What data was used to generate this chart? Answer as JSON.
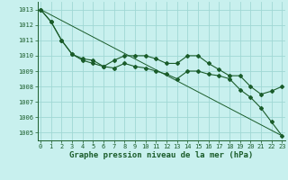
{
  "title": "Graphe pression niveau de la mer (hPa)",
  "bg_color": "#c8f0ee",
  "line_color": "#1a5c2a",
  "grid_color": "#a0d8d4",
  "ylim": [
    1004.5,
    1013.5
  ],
  "xlim": [
    -0.3,
    23.3
  ],
  "yticks": [
    1005,
    1006,
    1007,
    1008,
    1009,
    1010,
    1011,
    1012,
    1013
  ],
  "xticks": [
    0,
    1,
    2,
    3,
    4,
    5,
    6,
    7,
    8,
    9,
    10,
    11,
    12,
    13,
    14,
    15,
    16,
    17,
    18,
    19,
    20,
    21,
    22,
    23
  ],
  "line1_x": [
    0,
    1,
    2,
    3,
    4,
    5,
    6,
    7,
    8,
    9,
    10,
    11,
    12,
    13,
    14,
    15,
    16,
    17,
    18,
    19,
    20,
    21,
    22,
    23
  ],
  "line1_y": [
    1013.0,
    1012.2,
    1011.0,
    1010.1,
    1009.8,
    1009.7,
    1009.3,
    1009.7,
    1010.0,
    1010.0,
    1010.0,
    1009.8,
    1009.5,
    1009.5,
    1010.0,
    1010.0,
    1009.5,
    1009.1,
    1008.7,
    1008.7,
    1008.0,
    1007.5,
    1007.7,
    1008.0
  ],
  "line2_x": [
    0,
    1,
    2,
    3,
    4,
    5,
    6,
    7,
    8,
    9,
    10,
    11,
    12,
    13,
    14,
    15,
    16,
    17,
    18,
    19,
    20,
    21,
    22,
    23
  ],
  "line2_y": [
    1013.0,
    1012.2,
    1011.0,
    1010.1,
    1009.7,
    1009.5,
    1009.3,
    1009.2,
    1009.5,
    1009.3,
    1009.2,
    1009.0,
    1008.8,
    1008.5,
    1009.0,
    1009.0,
    1008.8,
    1008.7,
    1008.5,
    1007.8,
    1007.3,
    1006.6,
    1005.7,
    1004.8
  ],
  "line3_x": [
    0,
    23
  ],
  "line3_y": [
    1013.0,
    1004.8
  ],
  "tick_fontsize": 5.0,
  "xlabel_fontsize": 6.5
}
